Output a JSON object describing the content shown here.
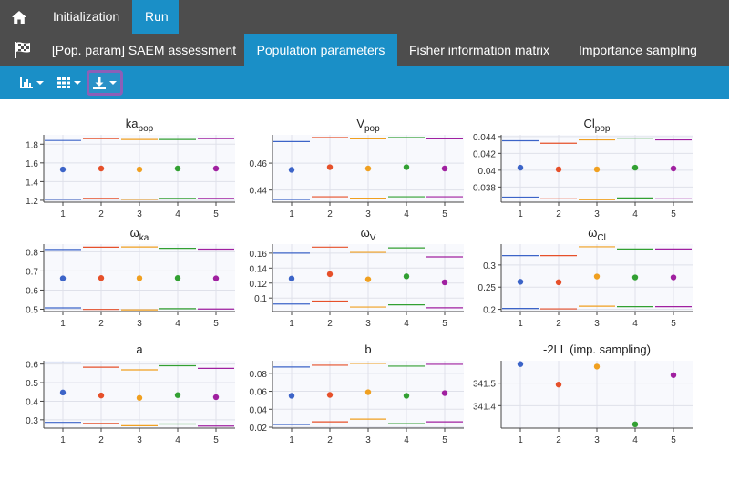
{
  "nav": {
    "home_icon": "home-icon",
    "tabs": [
      {
        "label": "Initialization",
        "active": false
      },
      {
        "label": "Run",
        "active": true
      }
    ]
  },
  "subnav": {
    "flag_icon": "checkered-flag-icon",
    "tabs": [
      {
        "label": "[Pop. param] SAEM assessment",
        "active": false
      },
      {
        "label": "Population parameters",
        "active": true
      },
      {
        "label": "Fisher information matrix",
        "active": false
      },
      {
        "label": "Importance sampling",
        "active": false
      }
    ]
  },
  "toolbar": {
    "buttons": [
      {
        "icon": "bar-chart-settings-icon",
        "dropdown": true
      },
      {
        "icon": "grid-layout-icon",
        "dropdown": true
      },
      {
        "icon": "download-icon",
        "dropdown": true,
        "highlighted": true
      }
    ]
  },
  "colors": {
    "run1": "#3c64c8",
    "run2": "#e6502a",
    "run3": "#f0a020",
    "run4": "#32a032",
    "run5": "#a020a0",
    "nav_bg": "#4d4d4d",
    "accent": "#1a8fc7",
    "highlight": "#8c5fb8"
  },
  "chart_data": [
    {
      "type": "scatter",
      "title": "ka",
      "title_sub": "pop",
      "x": [
        1,
        2,
        3,
        4,
        5
      ],
      "values": [
        1.53,
        1.54,
        1.53,
        1.54,
        1.54
      ],
      "upper": [
        1.84,
        1.86,
        1.85,
        1.85,
        1.86
      ],
      "lower": [
        1.21,
        1.22,
        1.21,
        1.22,
        1.22
      ],
      "ylim": [
        1.18,
        1.9
      ],
      "yticks": [
        1.2,
        1.4,
        1.6,
        1.8
      ],
      "ytick_labels": [
        "1.2",
        "1.4",
        "1.6",
        "1.8"
      ]
    },
    {
      "type": "scatter",
      "title": "V",
      "title_sub": "pop",
      "x": [
        1,
        2,
        3,
        4,
        5
      ],
      "values": [
        0.455,
        0.457,
        0.456,
        0.457,
        0.456
      ],
      "upper": [
        0.476,
        0.479,
        0.478,
        0.479,
        0.478
      ],
      "lower": [
        0.433,
        0.435,
        0.434,
        0.435,
        0.435
      ],
      "ylim": [
        0.431,
        0.481
      ],
      "yticks": [
        0.44,
        0.46
      ],
      "ytick_labels": [
        "0.44",
        "0.46"
      ]
    },
    {
      "type": "scatter",
      "title": "Cl",
      "title_sub": "pop",
      "x": [
        1,
        2,
        3,
        4,
        5
      ],
      "values": [
        0.0403,
        0.0401,
        0.0401,
        0.0403,
        0.0402
      ],
      "upper": [
        0.0435,
        0.0432,
        0.0436,
        0.0438,
        0.0436
      ],
      "lower": [
        0.0368,
        0.0366,
        0.0365,
        0.0367,
        0.0366
      ],
      "ylim": [
        0.0362,
        0.0442
      ],
      "yticks": [
        0.038,
        0.04,
        0.042,
        0.044
      ],
      "ytick_labels": [
        "0.038",
        "0.04",
        "0.042",
        "0.044"
      ]
    },
    {
      "type": "scatter",
      "title": "ω",
      "title_sub": "ka",
      "x": [
        1,
        2,
        3,
        4,
        5
      ],
      "values": [
        0.661,
        0.663,
        0.662,
        0.663,
        0.661
      ],
      "upper": [
        0.812,
        0.824,
        0.825,
        0.818,
        0.814
      ],
      "lower": [
        0.507,
        0.499,
        0.497,
        0.503,
        0.501
      ],
      "ylim": [
        0.488,
        0.84
      ],
      "yticks": [
        0.5,
        0.6,
        0.7,
        0.8
      ],
      "ytick_labels": [
        "0.5",
        "0.6",
        "0.7",
        "0.8"
      ]
    },
    {
      "type": "scatter",
      "title": "ω",
      "title_sub": "V",
      "x": [
        1,
        2,
        3,
        4,
        5
      ],
      "values": [
        0.126,
        0.132,
        0.125,
        0.129,
        0.121
      ],
      "upper": [
        0.16,
        0.168,
        0.161,
        0.167,
        0.155
      ],
      "lower": [
        0.092,
        0.096,
        0.088,
        0.091,
        0.087
      ],
      "ylim": [
        0.082,
        0.172
      ],
      "yticks": [
        0.1,
        0.12,
        0.14,
        0.16
      ],
      "ytick_labels": [
        "0.1",
        "0.12",
        "0.14",
        "0.16"
      ]
    },
    {
      "type": "scatter",
      "title": "ω",
      "title_sub": "Cl",
      "x": [
        1,
        2,
        3,
        4,
        5
      ],
      "values": [
        0.262,
        0.261,
        0.274,
        0.272,
        0.272
      ],
      "upper": [
        0.321,
        0.321,
        0.341,
        0.336,
        0.336
      ],
      "lower": [
        0.202,
        0.201,
        0.207,
        0.206,
        0.206
      ],
      "ylim": [
        0.195,
        0.347
      ],
      "yticks": [
        0.2,
        0.25,
        0.3
      ],
      "ytick_labels": [
        "0.2",
        "0.25",
        "0.3"
      ]
    },
    {
      "type": "scatter",
      "title": "a",
      "x": [
        1,
        2,
        3,
        4,
        5
      ],
      "values": [
        0.447,
        0.431,
        0.418,
        0.433,
        0.422
      ],
      "upper": [
        0.606,
        0.583,
        0.569,
        0.591,
        0.577
      ],
      "lower": [
        0.286,
        0.28,
        0.268,
        0.277,
        0.266
      ],
      "ylim": [
        0.255,
        0.618
      ],
      "yticks": [
        0.3,
        0.4,
        0.5,
        0.6
      ],
      "ytick_labels": [
        "0.3",
        "0.4",
        "0.5",
        "0.6"
      ]
    },
    {
      "type": "scatter",
      "title": "b",
      "x": [
        1,
        2,
        3,
        4,
        5
      ],
      "values": [
        0.055,
        0.056,
        0.059,
        0.055,
        0.058
      ],
      "upper": [
        0.087,
        0.089,
        0.091,
        0.088,
        0.09
      ],
      "lower": [
        0.023,
        0.026,
        0.029,
        0.024,
        0.026
      ],
      "ylim": [
        0.019,
        0.094
      ],
      "yticks": [
        0.02,
        0.04,
        0.06,
        0.08
      ],
      "ytick_labels": [
        "0.02",
        "0.04",
        "0.06",
        "0.08"
      ]
    },
    {
      "type": "scatter",
      "title": "-2LL (imp. sampling)",
      "x": [
        1,
        2,
        3,
        4,
        5
      ],
      "values": [
        341.585,
        341.494,
        341.574,
        341.317,
        341.536
      ],
      "ylim": [
        341.3,
        341.6
      ],
      "yticks": [
        341.4,
        341.5
      ],
      "ytick_labels": [
        "341.4",
        "341.5"
      ]
    }
  ]
}
